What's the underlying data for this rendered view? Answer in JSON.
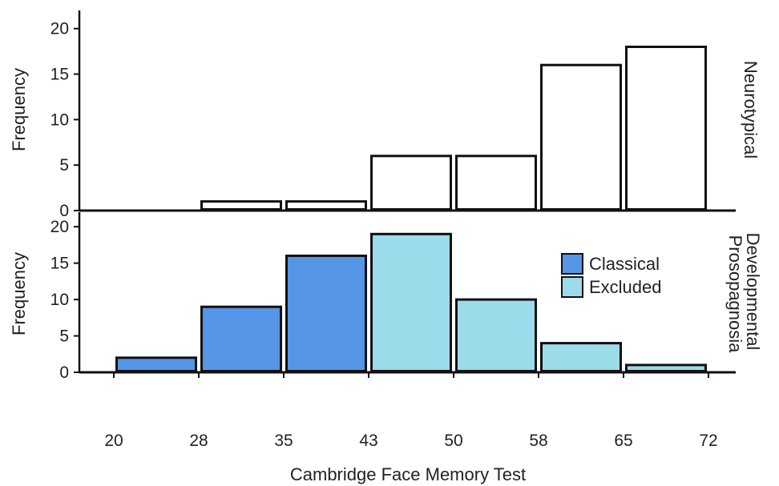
{
  "chart_data": {
    "type": "bar",
    "xlabel": "Cambridge Face Memory Test",
    "x_ticks": [
      "20",
      "28",
      "35",
      "43",
      "50",
      "58",
      "65",
      "72"
    ],
    "bin_edges": [
      20,
      28,
      35,
      43,
      50,
      58,
      65,
      72
    ],
    "categories": [
      "20–28",
      "28–35",
      "35–43",
      "43–50",
      "50–58",
      "58–65",
      "65–72"
    ],
    "panels": [
      {
        "panel_label": "Neurotypical",
        "ylabel": "Frequency",
        "ylim": [
          0,
          22
        ],
        "y_ticks": [
          0,
          5,
          10,
          15,
          20
        ],
        "values": [
          0,
          1,
          1,
          6,
          6,
          16,
          18
        ],
        "bar_colors": [
          "#ffffff",
          "#ffffff",
          "#ffffff",
          "#ffffff",
          "#ffffff",
          "#ffffff",
          "#ffffff"
        ],
        "legend": []
      },
      {
        "panel_label": "Developmental Prosopagnosia",
        "ylabel": "Frequency",
        "ylim": [
          0,
          22
        ],
        "y_ticks": [
          0,
          5,
          10,
          15,
          20
        ],
        "values": [
          2,
          9,
          16,
          19,
          10,
          4,
          1
        ],
        "bar_colors": [
          "#5596e6",
          "#5596e6",
          "#5596e6",
          "#9cdbe9",
          "#9cdbe9",
          "#9cdbe9",
          "#9cdbe9"
        ],
        "legend": [
          {
            "name": "Classical",
            "color": "#5596e6"
          },
          {
            "name": "Excluded",
            "color": "#9cdbe9"
          }
        ]
      }
    ]
  }
}
